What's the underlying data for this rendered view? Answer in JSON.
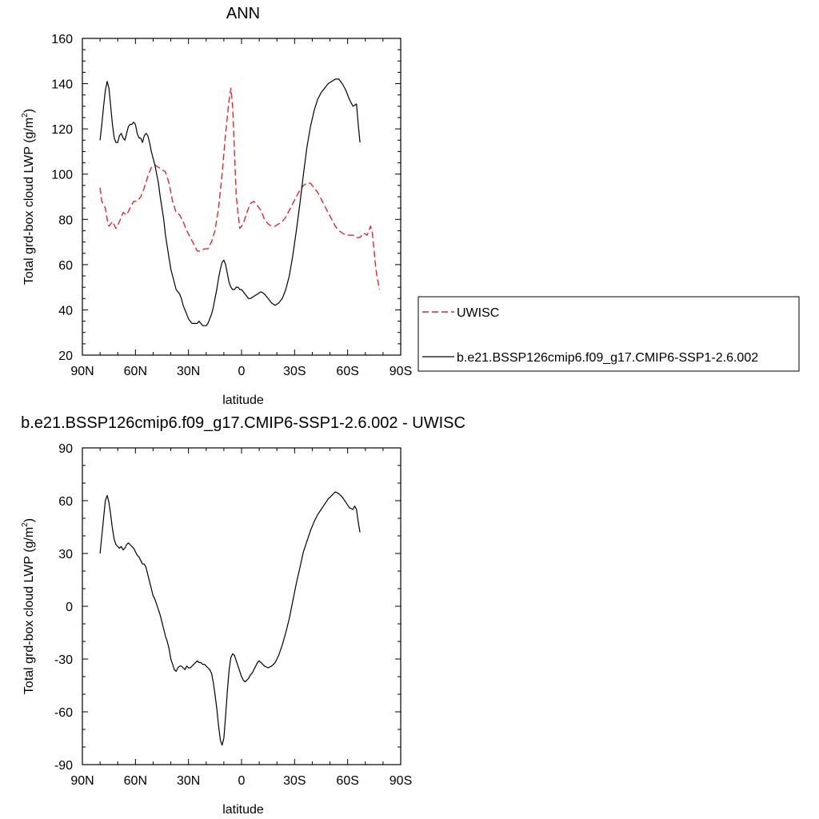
{
  "chart_data": [
    {
      "type": "line",
      "title": "ANN",
      "xlabel": "latitude",
      "ylabel": "Total grd-box cloud LWP (g/m",
      "ylabel_sup": "2",
      "ylabel_end": ")",
      "xlim": [
        90,
        -90
      ],
      "ylim": [
        20,
        160
      ],
      "xticks": [
        90,
        60,
        30,
        0,
        -30,
        -60,
        -90
      ],
      "xtick_labels": [
        "90N",
        "60N",
        "30N",
        "0",
        "30S",
        "60S",
        "90S"
      ],
      "yticks": [
        20,
        40,
        60,
        80,
        100,
        120,
        140,
        160
      ],
      "ytick_labels": [
        "20",
        "40",
        "60",
        "80",
        "100",
        "120",
        "140",
        "160"
      ],
      "legend": "outside-right",
      "series": [
        {
          "name": "UWISC",
          "color": "#e8252a",
          "dash": true,
          "x": [
            80,
            79,
            77,
            76,
            75,
            73,
            71,
            69,
            67,
            65,
            63,
            61,
            59,
            57,
            55,
            53,
            51,
            49,
            47,
            45,
            43,
            41,
            39,
            37,
            35,
            33,
            31,
            29,
            27,
            25,
            23,
            21,
            19,
            17,
            15,
            13,
            11,
            9,
            7,
            6,
            5,
            4,
            3,
            1,
            -1,
            -3,
            -5,
            -7,
            -9,
            -11,
            -13,
            -15,
            -17,
            -19,
            -21,
            -23,
            -25,
            -27,
            -29,
            -31,
            -33,
            -35,
            -37,
            -39,
            -41,
            -43,
            -45,
            -47,
            -49,
            -51,
            -53,
            -55,
            -57,
            -59,
            -61,
            -63,
            -65,
            -67,
            -69,
            -71,
            -72,
            -73,
            -74,
            -75,
            -76,
            -77,
            -78
          ],
          "y": [
            94,
            88,
            85,
            80,
            77,
            79,
            76,
            79,
            83,
            82,
            85,
            88,
            88,
            90,
            94,
            99,
            103,
            104,
            103,
            102,
            101,
            96,
            88,
            83,
            82,
            79,
            75,
            72,
            69,
            66,
            66,
            67,
            67,
            70,
            75,
            85,
            100,
            118,
            133,
            138,
            130,
            110,
            90,
            76,
            78,
            83,
            87,
            88,
            86,
            84,
            80,
            78,
            77,
            77,
            78,
            79,
            81,
            84,
            87,
            90,
            93,
            95,
            96,
            96,
            94,
            92,
            89,
            86,
            83,
            80,
            77,
            75,
            74,
            73,
            73,
            73,
            72,
            72,
            74,
            73,
            75,
            77,
            74,
            66,
            58,
            53,
            49
          ]
        },
        {
          "name": "b.e21.BSSP126cmip6.f09_g17.CMIP6-SSP1-2.6.002",
          "color": "#000000",
          "dash": false,
          "x": [
            80,
            79,
            78,
            77,
            76,
            75,
            74,
            73,
            72,
            71,
            70,
            69,
            68,
            67,
            66,
            65,
            64,
            63,
            62,
            61,
            60,
            59,
            58,
            57,
            56,
            55,
            54,
            53,
            52,
            51,
            50,
            49,
            48,
            47,
            46,
            45,
            44,
            43,
            42,
            41,
            40,
            39,
            38,
            37,
            36,
            35,
            34,
            33,
            32,
            31,
            30,
            29,
            28,
            27,
            26,
            25,
            24,
            23,
            22,
            21,
            20,
            19,
            18,
            17,
            16,
            15,
            14,
            13,
            12,
            11,
            10,
            9,
            8,
            7,
            6,
            5,
            4,
            3,
            2,
            1,
            0,
            -1,
            -2,
            -3,
            -4,
            -5,
            -7,
            -9,
            -11,
            -13,
            -15,
            -17,
            -19,
            -21,
            -23,
            -25,
            -27,
            -29,
            -31,
            -33,
            -35,
            -37,
            -39,
            -41,
            -43,
            -45,
            -47,
            -49,
            -51,
            -53,
            -55,
            -57,
            -59,
            -61,
            -63,
            -65,
            -66,
            -67
          ],
          "y": [
            115,
            122,
            130,
            137,
            141,
            138,
            130,
            122,
            116,
            114,
            114,
            117,
            118,
            116,
            115,
            118,
            121,
            122,
            122,
            123,
            122,
            118,
            116,
            116,
            114,
            117,
            118,
            117,
            114,
            110,
            107,
            104,
            100,
            96,
            90,
            85,
            80,
            73,
            68,
            63,
            58,
            55,
            52,
            49,
            48,
            47,
            45,
            42,
            40,
            38,
            36,
            35,
            34,
            34,
            34,
            34,
            35,
            34,
            33,
            33,
            33,
            34,
            36,
            38,
            41,
            45,
            49,
            54,
            58,
            61,
            62,
            60,
            56,
            52,
            50,
            49,
            49,
            50,
            50,
            49,
            49,
            48,
            47,
            46,
            45,
            45,
            46,
            47,
            48,
            47,
            45,
            43,
            42,
            43,
            45,
            49,
            55,
            64,
            75,
            87,
            100,
            112,
            121,
            128,
            133,
            136,
            138,
            140,
            141,
            142,
            142,
            140,
            137,
            133,
            130,
            131,
            122,
            114
          ]
        }
      ]
    },
    {
      "type": "line",
      "title": "b.e21.BSSP126cmip6.f09_g17.CMIP6-SSP1-2.6.002 - UWISC",
      "xlabel": "latitude",
      "ylabel": "Total grd-box cloud LWP (g/m",
      "ylabel_sup": "2",
      "ylabel_end": ")",
      "xlim": [
        90,
        -90
      ],
      "ylim": [
        -90,
        90
      ],
      "xticks": [
        90,
        60,
        30,
        0,
        -30,
        -60,
        -90
      ],
      "xtick_labels": [
        "90N",
        "60N",
        "30N",
        "0",
        "30S",
        "60S",
        "90S"
      ],
      "yticks": [
        -90,
        -60,
        -30,
        0,
        30,
        60,
        90
      ],
      "ytick_labels": [
        "-90",
        "-60",
        "-30",
        "0",
        "30",
        "60",
        "90"
      ],
      "series": [
        {
          "color": "#000000",
          "dash": false,
          "x": [
            80,
            79,
            78,
            77,
            76,
            75,
            74,
            73,
            72,
            71,
            70,
            69,
            68,
            67,
            66,
            65,
            64,
            63,
            62,
            61,
            60,
            59,
            58,
            57,
            56,
            55,
            54,
            53,
            52,
            51,
            50,
            49,
            48,
            47,
            46,
            45,
            44,
            43,
            42,
            41,
            40,
            39,
            38,
            37,
            36,
            35,
            34,
            33,
            32,
            31,
            30,
            29,
            28,
            27,
            26,
            25,
            24,
            23,
            22,
            21,
            20,
            19,
            18,
            17,
            16,
            15,
            14,
            13,
            12,
            11,
            10,
            9,
            8,
            7,
            6,
            5,
            4,
            3,
            2,
            1,
            0,
            -1,
            -2,
            -3,
            -4,
            -5,
            -6,
            -7,
            -8,
            -9,
            -10,
            -11,
            -12,
            -13,
            -15,
            -17,
            -19,
            -21,
            -23,
            -25,
            -27,
            -29,
            -31,
            -33,
            -35,
            -37,
            -39,
            -41,
            -43,
            -45,
            -47,
            -49,
            -51,
            -53,
            -55,
            -57,
            -59,
            -61,
            -63,
            -64,
            -65,
            -66,
            -67
          ],
          "y": [
            30,
            40,
            50,
            60,
            63,
            59,
            52,
            44,
            38,
            35,
            34,
            33,
            34,
            32,
            33,
            35,
            36,
            35,
            34,
            33,
            31,
            29,
            28,
            26,
            24,
            24,
            22,
            18,
            14,
            10,
            6,
            4,
            1,
            -2,
            -5,
            -9,
            -13,
            -17,
            -20,
            -24,
            -30,
            -33,
            -36,
            -37,
            -35,
            -34,
            -34,
            -35,
            -36,
            -34,
            -35,
            -35,
            -34,
            -33,
            -32,
            -31,
            -32,
            -32,
            -33,
            -33,
            -34,
            -35,
            -36,
            -38,
            -43,
            -50,
            -58,
            -68,
            -76,
            -79,
            -75,
            -62,
            -48,
            -36,
            -29,
            -27,
            -28,
            -31,
            -34,
            -37,
            -40,
            -42,
            -43,
            -42,
            -41,
            -39,
            -38,
            -36,
            -34,
            -32,
            -31,
            -32,
            -33,
            -34,
            -35,
            -34,
            -32,
            -28,
            -22,
            -15,
            -7,
            3,
            13,
            22,
            31,
            37,
            43,
            48,
            52,
            55,
            58,
            61,
            63,
            65,
            64,
            62,
            59,
            56,
            55,
            57,
            55,
            48,
            42
          ]
        }
      ]
    }
  ]
}
